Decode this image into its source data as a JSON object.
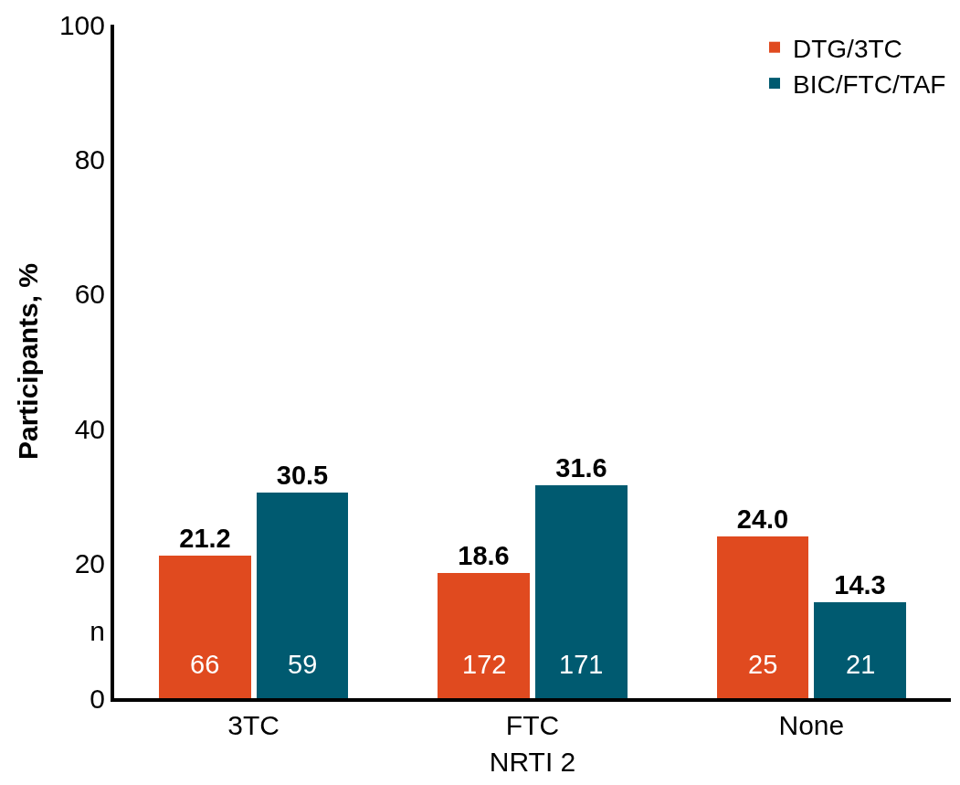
{
  "chart_data": {
    "type": "bar",
    "xlabel": "NRTI 2",
    "ylabel": "Participants, %",
    "categories": [
      "3TC",
      "FTC",
      "None"
    ],
    "series": [
      {
        "name": "DTG/3TC",
        "color": "#e04a1f",
        "values": [
          21.2,
          18.6,
          24.0
        ],
        "value_labels": [
          "21.2",
          "18.6",
          "24.0"
        ]
      },
      {
        "name": "BIC/FTC/TAF",
        "color": "#005a70",
        "values": [
          30.5,
          31.6,
          14.3
        ],
        "value_labels": [
          "30.5",
          "31.6",
          "14.3"
        ]
      }
    ],
    "ylim": [
      0,
      100
    ],
    "yticks": [
      0,
      {
        "value": 10,
        "label": "n"
      },
      20,
      40,
      60,
      80,
      100
    ],
    "legend": "top right",
    "annotations": [
      {
        "text": "66",
        "x": "3TC",
        "y": 5
      },
      {
        "text": "59",
        "x": "3TC",
        "y": 5
      },
      {
        "text": "172",
        "x": "FTC",
        "y": 5
      },
      {
        "text": "171",
        "x": "FTC",
        "y": 5
      },
      {
        "text": "25",
        "x": "None",
        "y": 5
      },
      {
        "text": "21",
        "x": "None",
        "y": 5
      }
    ]
  }
}
